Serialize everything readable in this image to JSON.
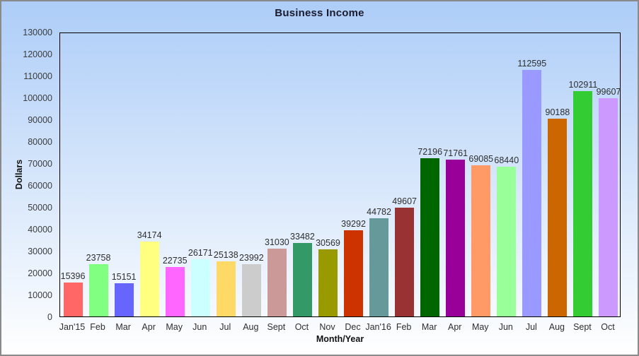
{
  "chart_data": {
    "type": "bar",
    "title": "Business Income",
    "xlabel": "Month/Year",
    "ylabel": "Dollars",
    "categories": [
      "Jan'15",
      "Feb",
      "Mar",
      "Apr",
      "May",
      "Jun",
      "Jul",
      "Aug",
      "Sept",
      "Oct",
      "Nov",
      "Dec",
      "Jan'16",
      "Feb",
      "Mar",
      "Apr",
      "May",
      "Jun",
      "Jul",
      "Aug",
      "Sept",
      "Oct"
    ],
    "values": [
      15396,
      23758,
      15151,
      34174,
      22735,
      26171,
      25138,
      23992,
      31030,
      33482,
      30569,
      39292,
      44782,
      49607,
      72196,
      71761,
      69085,
      68440,
      112595,
      90188,
      102911,
      99607
    ],
    "bar_colors": [
      "#FF6666",
      "#80FF80",
      "#6666FF",
      "#FFFF80",
      "#FF66FF",
      "#CCFFFF",
      "#FFD966",
      "#CCCCCC",
      "#CC9999",
      "#339966",
      "#999900",
      "#CC3300",
      "#669999",
      "#993333",
      "#006600",
      "#990099",
      "#FF9966",
      "#99FF99",
      "#9999FF",
      "#CC6600",
      "#33CC33",
      "#CC99FF"
    ],
    "ylim": [
      0,
      130000
    ],
    "ytick_step": 10000,
    "grid": false,
    "legend": "none",
    "value_labels": "above-bars"
  },
  "colors": {
    "background_top": "#ADCDF8",
    "background_bottom": "#FFFFFF",
    "frame_border": "#8A8A8A",
    "plot_border": "#000000",
    "title_text": "#1B1B30",
    "tick_text": "#3C3C3C"
  }
}
